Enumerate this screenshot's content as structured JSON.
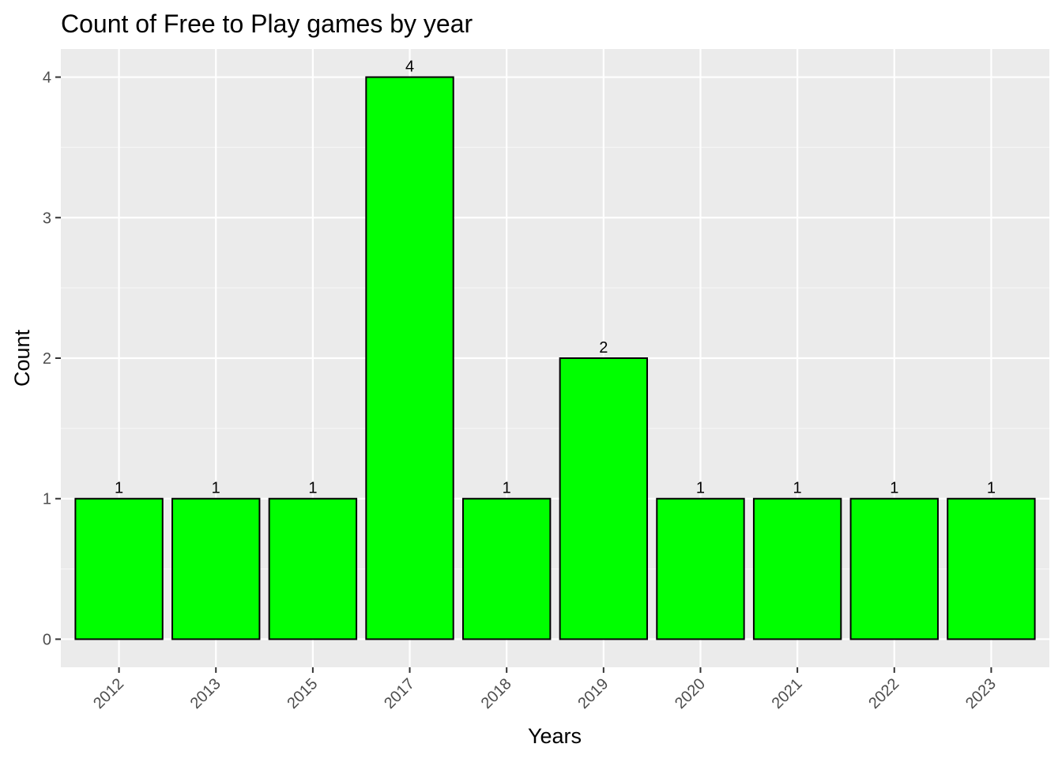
{
  "chart_data": {
    "type": "bar",
    "title": "Count of Free to Play games by year",
    "xlabel": "Years",
    "ylabel": "Count",
    "categories": [
      "2012",
      "2013",
      "2015",
      "2017",
      "2018",
      "2019",
      "2020",
      "2021",
      "2022",
      "2023"
    ],
    "values": [
      1,
      1,
      1,
      4,
      1,
      2,
      1,
      1,
      1,
      1
    ],
    "data_labels": [
      "1",
      "1",
      "1",
      "4",
      "1",
      "2",
      "1",
      "1",
      "1",
      "1"
    ],
    "yticks": [
      0,
      1,
      2,
      3,
      4
    ],
    "ylim": [
      -0.2,
      4.2
    ],
    "grid": true,
    "legend": "none",
    "colors": {
      "bar_fill": "#00FF00",
      "bar_stroke": "#000000",
      "panel_background": "#EBEBEB",
      "grid_major": "#FFFFFF",
      "grid_minor": "#F5F5F5"
    }
  }
}
